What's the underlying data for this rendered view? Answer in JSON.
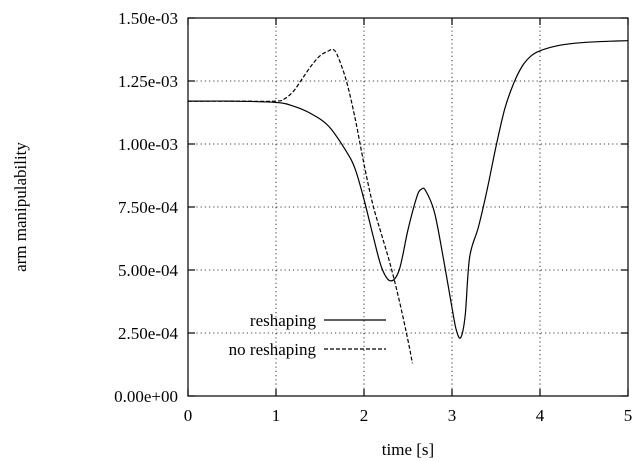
{
  "chart_data": {
    "type": "line",
    "title": "",
    "xlabel": "time [s]",
    "ylabel": "arm manipulability",
    "xlim": [
      0,
      5
    ],
    "ylim": [
      0,
      0.0015
    ],
    "grid": true,
    "legend_position": "bottom-center",
    "x_ticks": [
      "0",
      "1",
      "2",
      "3",
      "4",
      "5"
    ],
    "x_tick_values": [
      0,
      1,
      2,
      3,
      4,
      5
    ],
    "y_ticks": [
      "0.00e+00",
      "2.50e-04",
      "5.00e-04",
      "7.50e-04",
      "1.00e-03",
      "1.25e-03",
      "1.50e-03"
    ],
    "y_tick_values": [
      0,
      0.00025,
      0.0005,
      0.00075,
      0.001,
      0.00125,
      0.0015
    ],
    "series": [
      {
        "name": "reshaping",
        "style": "solid",
        "color": "#000000",
        "x": [
          0,
          0.5,
          1.0,
          1.2,
          1.4,
          1.6,
          1.8,
          1.9,
          2.0,
          2.1,
          2.2,
          2.3,
          2.4,
          2.5,
          2.6,
          2.65,
          2.7,
          2.8,
          2.9,
          3.0,
          3.05,
          3.1,
          3.15,
          3.2,
          3.3,
          3.4,
          3.5,
          3.6,
          3.7,
          3.8,
          3.9,
          4.0,
          4.2,
          4.4,
          4.6,
          4.8,
          5.0
        ],
        "y": [
          0.00117,
          0.00117,
          0.001165,
          0.00115,
          0.00112,
          0.00107,
          0.00097,
          0.0009,
          0.00078,
          0.00064,
          0.00051,
          0.000457,
          0.0005,
          0.00066,
          0.00079,
          0.00082,
          0.000815,
          0.00073,
          0.00055,
          0.00035,
          0.00026,
          0.000232,
          0.00032,
          0.00055,
          0.00067,
          0.00082,
          0.00099,
          0.00114,
          0.00124,
          0.00131,
          0.00135,
          0.00137,
          0.00139,
          0.0014,
          0.001405,
          0.001408,
          0.00141
        ]
      },
      {
        "name": "no reshaping",
        "style": "dashed",
        "color": "#000000",
        "x": [
          0,
          0.5,
          1.0,
          1.1,
          1.2,
          1.3,
          1.4,
          1.5,
          1.6,
          1.65,
          1.7,
          1.8,
          1.9,
          2.0,
          2.1,
          2.2,
          2.3,
          2.4,
          2.5,
          2.55
        ],
        "y": [
          0.00117,
          0.00117,
          0.00117,
          0.00118,
          0.00121,
          0.00126,
          0.00131,
          0.00135,
          0.00137,
          0.001375,
          0.00135,
          0.00125,
          0.0011,
          0.00092,
          0.00076,
          0.00064,
          0.00052,
          0.00038,
          0.00022,
          0.00013
        ]
      }
    ]
  }
}
